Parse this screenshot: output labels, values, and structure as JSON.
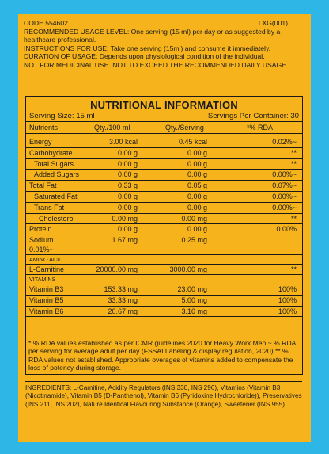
{
  "header": {
    "code": "CODE 554602",
    "lot": "LXG(001)",
    "lines": [
      "RECOMMENDED USAGE LEVEL: One serving (15 ml) per day or as suggested by a healthcare professional.",
      "INSTRUCTIONS FOR USE: Take one serving (15ml) and consume it immediately.",
      "DURATION OF USAGE: Depends upon physiological condition of the individual.",
      "NOT FOR MEDICINAL USE. NOT TO EXCEED THE RECOMMENDED DAILY USAGE."
    ]
  },
  "nutrition": {
    "title": "NUTRITIONAL INFORMATION",
    "serving_size": "Serving Size: 15 ml",
    "servings_per_container": "Servings Per Container: 30",
    "columns": [
      "Nutrients",
      "Qty./100 ml",
      "Qty./Serving",
      "*% RDA"
    ],
    "rows": [
      {
        "name": "Energy",
        "q100": "3.00 kcal",
        "qs": "0.45 kcal",
        "rda": "0.02%~"
      },
      {
        "name": "Carbohydrate",
        "q100": "0.00 g",
        "qs": "0.00 g",
        "rda": "**"
      },
      {
        "name": "Total Sugars",
        "q100": "0.00 g",
        "qs": "0.00 g",
        "rda": "**"
      },
      {
        "name": "Added Sugars",
        "q100": "0.00 g",
        "qs": "0.00 g",
        "rda": "0.00%~"
      },
      {
        "name": "Total Fat",
        "q100": "0.33 g",
        "qs": "0.05 g",
        "rda": "0.07%~"
      },
      {
        "name": "Saturated Fat",
        "q100": "0.00 g",
        "qs": "0.00 g",
        "rda": "0.00%~"
      },
      {
        "name": "Trans Fat",
        "q100": "0.00 g",
        "qs": "0.00 g",
        "rda": "0.00%~"
      },
      {
        "name": "Cholesterol",
        "q100": "0.00 mg",
        "qs": "0.00 mg",
        "rda": "**"
      },
      {
        "name": "Protein",
        "q100": "0.00 g",
        "qs": "0.00 g",
        "rda": "0.00%"
      },
      {
        "name": "Sodium",
        "q100": "1.67 mg",
        "qs": "0.25 mg",
        "rda": "0.01%~"
      }
    ],
    "amino_label": "AMINO ACID",
    "amino_rows": [
      {
        "name": "L-Carnitine",
        "q100": "20000.00 mg",
        "qs": "3000.00 mg",
        "rda": "**"
      }
    ],
    "vitamins_label": "VITAMINS",
    "vitamin_rows": [
      {
        "name": "Vitamin B3",
        "q100": "153.33 mg",
        "qs": "23.00 mg",
        "rda": "100%"
      },
      {
        "name": "Vitamin B5",
        "q100": "33.33 mg",
        "qs": "5.00 mg",
        "rda": "100%"
      },
      {
        "name": "Vitamin B6",
        "q100": "20.67 mg",
        "qs": "3.10 mg",
        "rda": "100%"
      }
    ],
    "footnote": "* % RDA values established as per ICMR guidelines 2020 for Heavy Work Men.~ % RDA per serving for average adult per day (FSSAI Labeling & display regulation, 2020).** % RDA values not established. Appropriate overages of vitamins added to compensate the loss of potency during storage."
  },
  "ingredients": "INGREDIENTS: L-Carnitine, Acidity Regulators (INS 330, INS 296), Vitamins (Vitamin B3 (Nicotinamide), Vitamin B5 (D-Panthenol), Vitamin B6 (Pyridoxine Hydrochloride)), Preservatives (INS 211, INS 202), Nature Identical Flavouring Substance (Orange), Sweetener (INS 955).",
  "colors": {
    "background": "#2eb6e6",
    "label": "#f6b31c",
    "ink": "#1a1a1a"
  }
}
